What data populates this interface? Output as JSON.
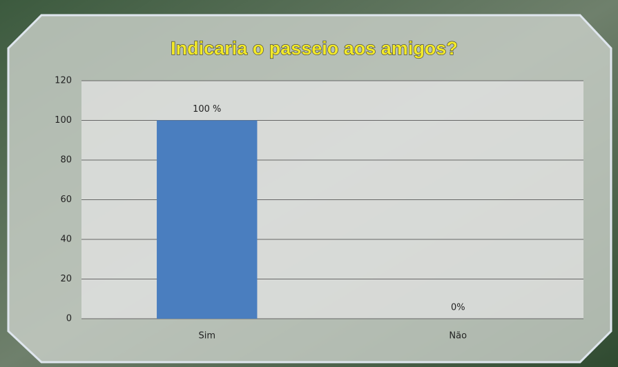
{
  "chart_data": {
    "type": "bar",
    "title": "Indicaria o passeio aos amigos?",
    "categories": [
      "Sim",
      "Não"
    ],
    "values": [
      100,
      0
    ],
    "value_labels": [
      "100 %",
      "0%"
    ],
    "color": "#4a7ebf",
    "ylim": [
      0,
      120
    ],
    "yticks": [
      0,
      20,
      40,
      60,
      80,
      100,
      120
    ],
    "grid": true
  }
}
